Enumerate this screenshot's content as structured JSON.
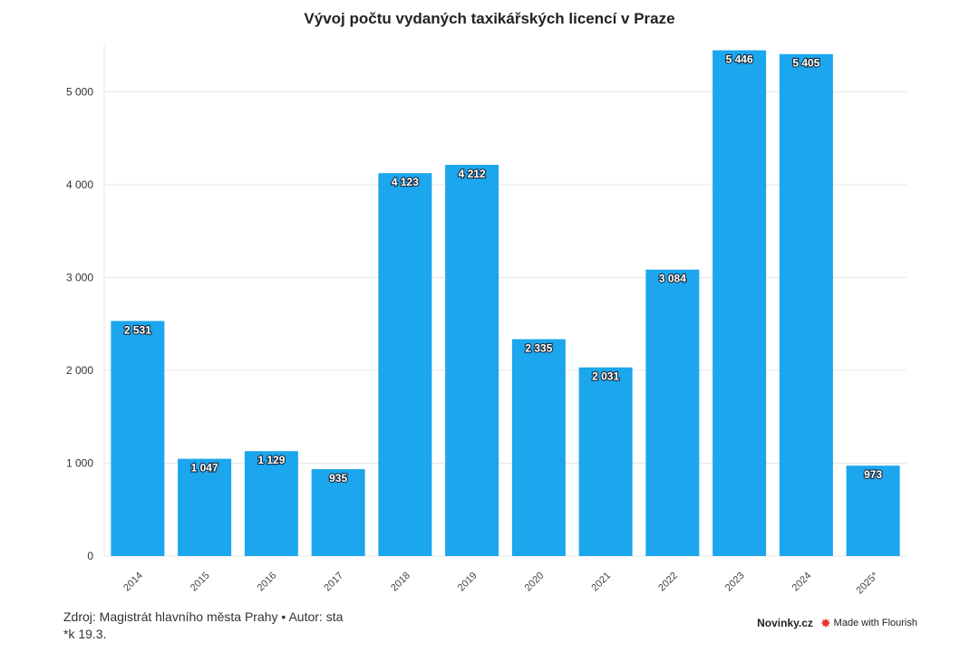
{
  "chart_data": {
    "type": "bar",
    "title": "Vývoj počtu vydaných taxikářských licencí v Praze",
    "categories": [
      "2014",
      "2015",
      "2016",
      "2017",
      "2018",
      "2019",
      "2020",
      "2021",
      "2022",
      "2023",
      "2024",
      "2025*"
    ],
    "values": [
      2531,
      1047,
      1129,
      935,
      4123,
      4212,
      2335,
      2031,
      3084,
      5446,
      5405,
      973
    ],
    "data_labels": [
      "2 531",
      "1 047",
      "1 129",
      "935",
      "4 123",
      "4 212",
      "2 335",
      "2 031",
      "3 084",
      "5 446",
      "5 405",
      "973"
    ],
    "y_ticks": [
      0,
      1000,
      2000,
      3000,
      4000,
      5000
    ],
    "y_tick_labels": [
      "0",
      "1 000",
      "2 000",
      "3 000",
      "4 000",
      "5 000"
    ],
    "ylim": [
      0,
      5500
    ],
    "xlabel": "",
    "ylabel": "",
    "grid": true,
    "bar_color": "#1ba6ee",
    "x_tick_rotation_deg": -45
  },
  "footer": {
    "source": "Zdroj: Magistrát hlavního města Prahy • Autor: sta",
    "note": "*k 19.3."
  },
  "branding": {
    "site": "Novinky.cz",
    "flourish": "Made with Flourish",
    "flourish_icon": "flourish-star-icon",
    "flourish_color": "#e8322b"
  }
}
